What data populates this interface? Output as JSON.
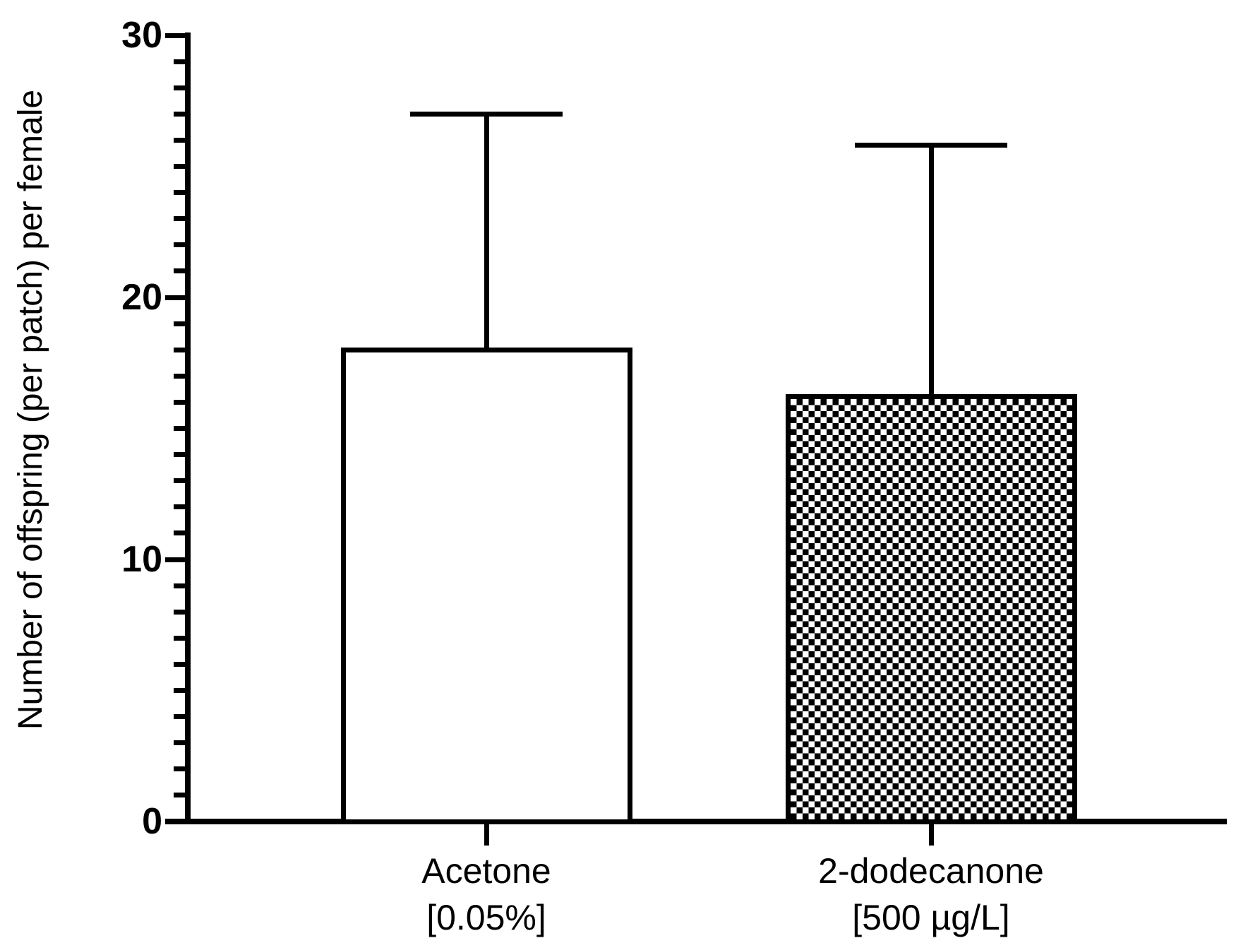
{
  "figure": {
    "background_color": "#ffffff",
    "ink_color": "#000000"
  },
  "chart_data": {
    "type": "bar",
    "title": "",
    "xlabel": "",
    "ylabel": "Number of offspring (per patch) per female",
    "ylim": [
      0,
      30
    ],
    "yticks": [
      0,
      10,
      20,
      30
    ],
    "minor_tick_interval": 1,
    "tick_direction": "outside",
    "grid": false,
    "legend_position": "none",
    "categories": [
      "Acetone\n[0.05%]",
      "2-dodecanone\n[500 µg/L]"
    ],
    "values": [
      18,
      16.2
    ],
    "errors_upper": [
      9,
      9.6
    ],
    "error_bar_style": "upper-only-with-cap",
    "bar_fills": [
      "open",
      "checkerboard"
    ]
  }
}
